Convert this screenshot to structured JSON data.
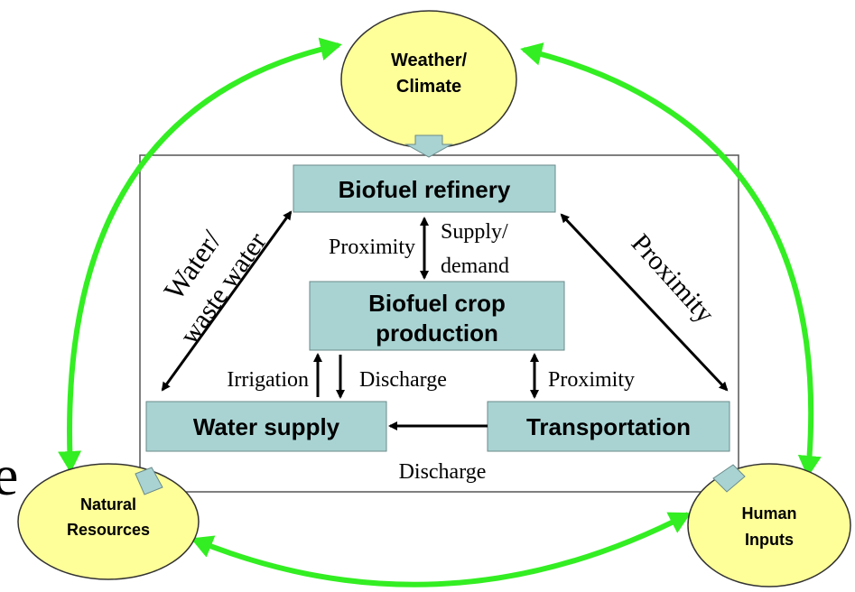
{
  "fragment": "e",
  "nodes": [
    {
      "id": "weather",
      "lines": [
        "Weather/",
        "Climate"
      ]
    },
    {
      "id": "natural",
      "lines": [
        "Natural",
        "Resources"
      ]
    },
    {
      "id": "human",
      "lines": [
        "Human",
        "Inputs"
      ]
    },
    {
      "id": "refinery",
      "lines": [
        "Biofuel refinery"
      ]
    },
    {
      "id": "crop",
      "lines": [
        "Biofuel crop",
        "production"
      ]
    },
    {
      "id": "water",
      "lines": [
        "Water supply"
      ]
    },
    {
      "id": "transport",
      "lines": [
        "Transportation"
      ]
    }
  ],
  "edge_labels": [
    "Water/",
    "waste water",
    "Proximity",
    "Proximity",
    "Supply/",
    "demand",
    "Irrigation",
    "Discharge",
    "Proximity",
    "Discharge"
  ]
}
